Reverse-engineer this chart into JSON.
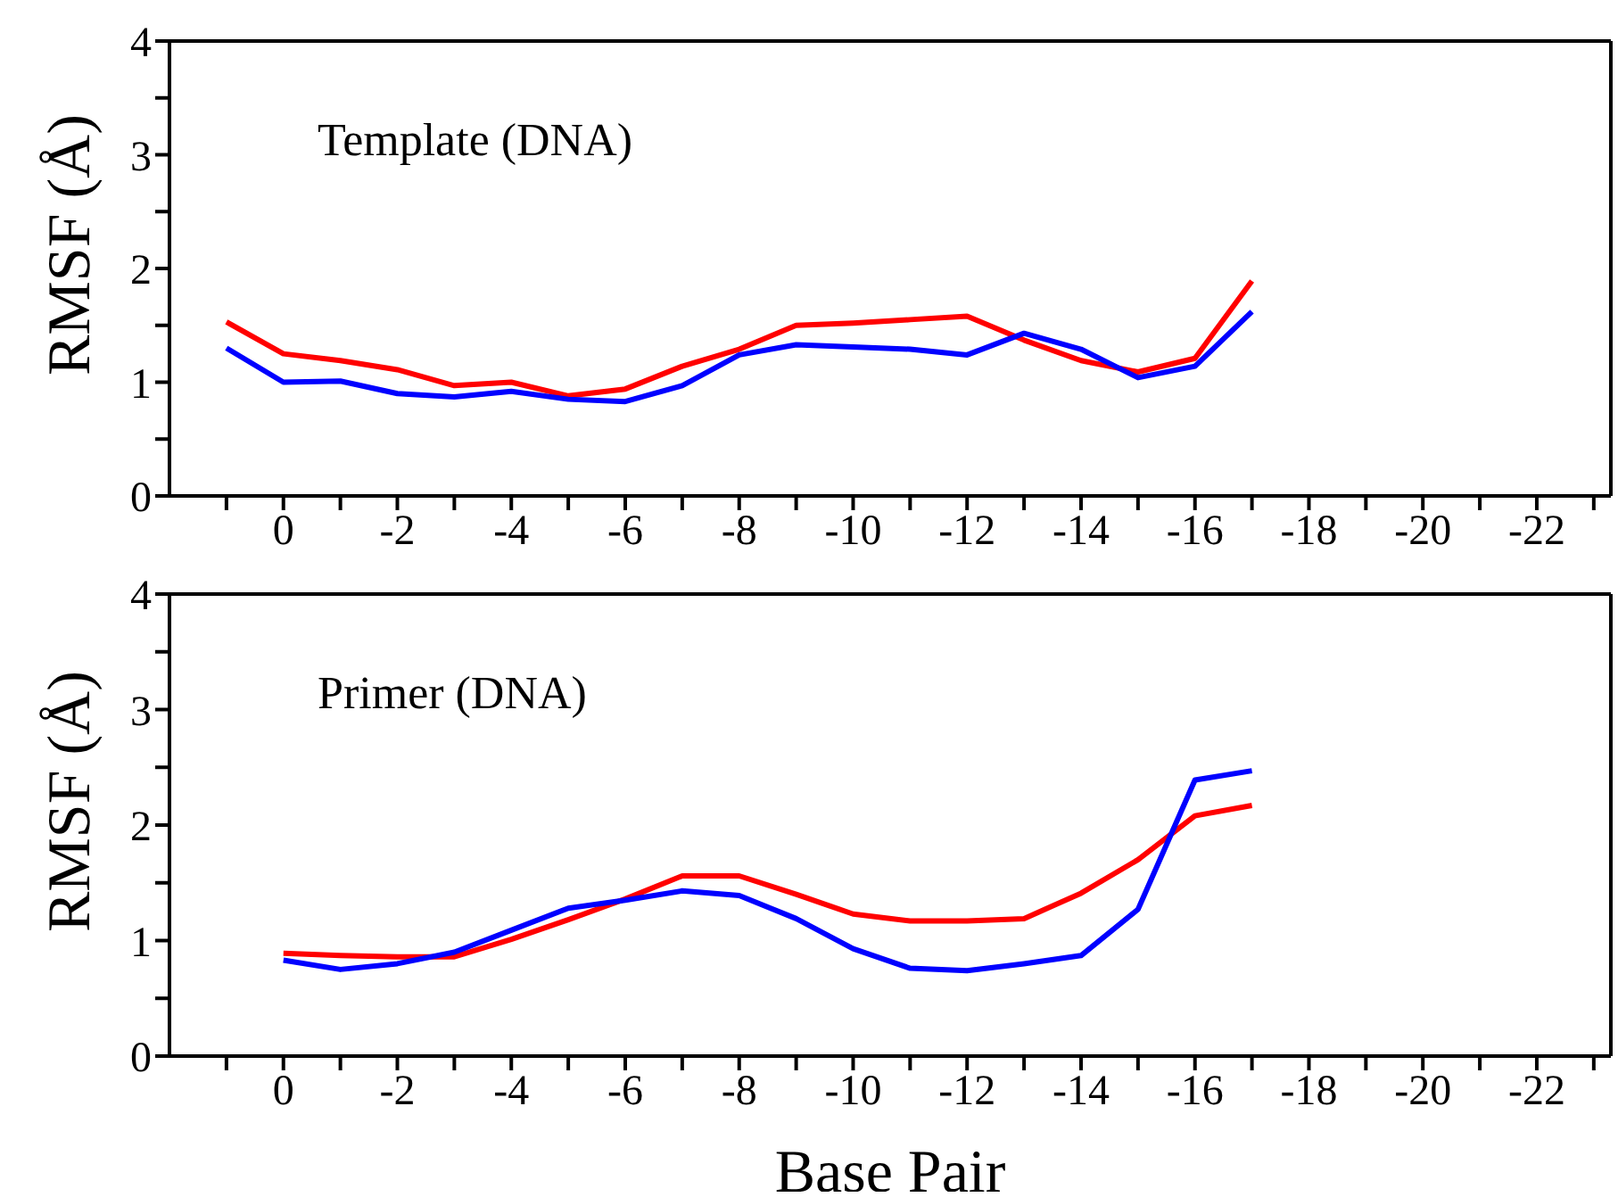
{
  "chart_data": [
    {
      "type": "line",
      "title": "Template (DNA)",
      "ylabel": "RMSF (Å)",
      "x": [
        1,
        0,
        -1,
        -2,
        -3,
        -4,
        -5,
        -6,
        -7,
        -8,
        -9,
        -10,
        -11,
        -12,
        -13,
        -14,
        -15,
        -16,
        -17
      ],
      "series": [
        {
          "color": "#ff0000",
          "values": [
            1.53,
            1.25,
            1.19,
            1.11,
            0.97,
            1.0,
            0.88,
            0.94,
            1.14,
            1.29,
            1.5,
            1.52,
            1.55,
            1.58,
            1.37,
            1.19,
            1.09,
            1.21,
            1.89
          ]
        },
        {
          "color": "#0000ff",
          "values": [
            1.3,
            1.0,
            1.01,
            0.9,
            0.87,
            0.92,
            0.85,
            0.83,
            0.97,
            1.24,
            1.33,
            1.31,
            1.29,
            1.24,
            1.43,
            1.29,
            1.04,
            1.14,
            1.62
          ]
        }
      ],
      "xlim": [
        2,
        -23.3
      ],
      "xticks": [
        {
          "value": 1,
          "label": null
        },
        0,
        {
          "value": -1,
          "label": null
        },
        -2,
        {
          "value": -3,
          "label": null
        },
        -4,
        {
          "value": -5,
          "label": null
        },
        -6,
        {
          "value": -7,
          "label": null
        },
        -8,
        {
          "value": -9,
          "label": null
        },
        -10,
        {
          "value": -11,
          "label": null
        },
        -12,
        {
          "value": -13,
          "label": null
        },
        -14,
        {
          "value": -15,
          "label": null
        },
        -16,
        {
          "value": -17,
          "label": null
        },
        -18,
        {
          "value": -19,
          "label": null
        },
        -20,
        {
          "value": -21,
          "label": null
        },
        -22,
        {
          "value": -23,
          "label": null
        }
      ],
      "ylim": [
        0,
        4
      ],
      "yticks": [
        0,
        {
          "value": 0.5,
          "label": null
        },
        1,
        {
          "value": 1.5,
          "label": null
        },
        2,
        {
          "value": 2.5,
          "label": null
        },
        3,
        {
          "value": 3.5,
          "label": null
        },
        4
      ],
      "grid": false,
      "legend": false,
      "marker": "none",
      "line_style": "solid"
    },
    {
      "type": "line",
      "title": "Primer (DNA)",
      "ylabel": "RMSF (Å)",
      "xlabel": "Base Pair",
      "x": [
        0,
        -1,
        -2,
        -3,
        -4,
        -5,
        -6,
        -7,
        -8,
        -9,
        -10,
        -11,
        -12,
        -13,
        -14,
        -15,
        -16,
        -17
      ],
      "series": [
        {
          "color": "#ff0000",
          "values": [
            0.89,
            0.87,
            0.86,
            0.86,
            1.01,
            1.18,
            1.36,
            1.56,
            1.56,
            1.4,
            1.23,
            1.17,
            1.17,
            1.19,
            1.41,
            1.7,
            2.08,
            2.17
          ]
        },
        {
          "color": "#0000ff",
          "values": [
            0.83,
            0.75,
            0.8,
            0.9,
            1.09,
            1.28,
            1.35,
            1.43,
            1.39,
            1.19,
            0.93,
            0.76,
            0.74,
            0.8,
            0.87,
            1.27,
            2.39,
            2.47
          ]
        }
      ],
      "xlim": [
        2,
        -23.3
      ],
      "xticks": [
        {
          "value": 1,
          "label": null
        },
        0,
        {
          "value": -1,
          "label": null
        },
        -2,
        {
          "value": -3,
          "label": null
        },
        -4,
        {
          "value": -5,
          "label": null
        },
        -6,
        {
          "value": -7,
          "label": null
        },
        -8,
        {
          "value": -9,
          "label": null
        },
        -10,
        {
          "value": -11,
          "label": null
        },
        -12,
        {
          "value": -13,
          "label": null
        },
        -14,
        {
          "value": -15,
          "label": null
        },
        -16,
        {
          "value": -17,
          "label": null
        },
        -18,
        {
          "value": -19,
          "label": null
        },
        -20,
        {
          "value": -21,
          "label": null
        },
        -22,
        {
          "value": -23,
          "label": null
        }
      ],
      "ylim": [
        0,
        4
      ],
      "yticks": [
        0,
        {
          "value": 0.5,
          "label": null
        },
        1,
        {
          "value": 1.5,
          "label": null
        },
        2,
        {
          "value": 2.5,
          "label": null
        },
        3,
        {
          "value": 3.5,
          "label": null
        },
        4
      ],
      "grid": false,
      "legend": false,
      "marker": "none",
      "line_style": "solid"
    }
  ]
}
